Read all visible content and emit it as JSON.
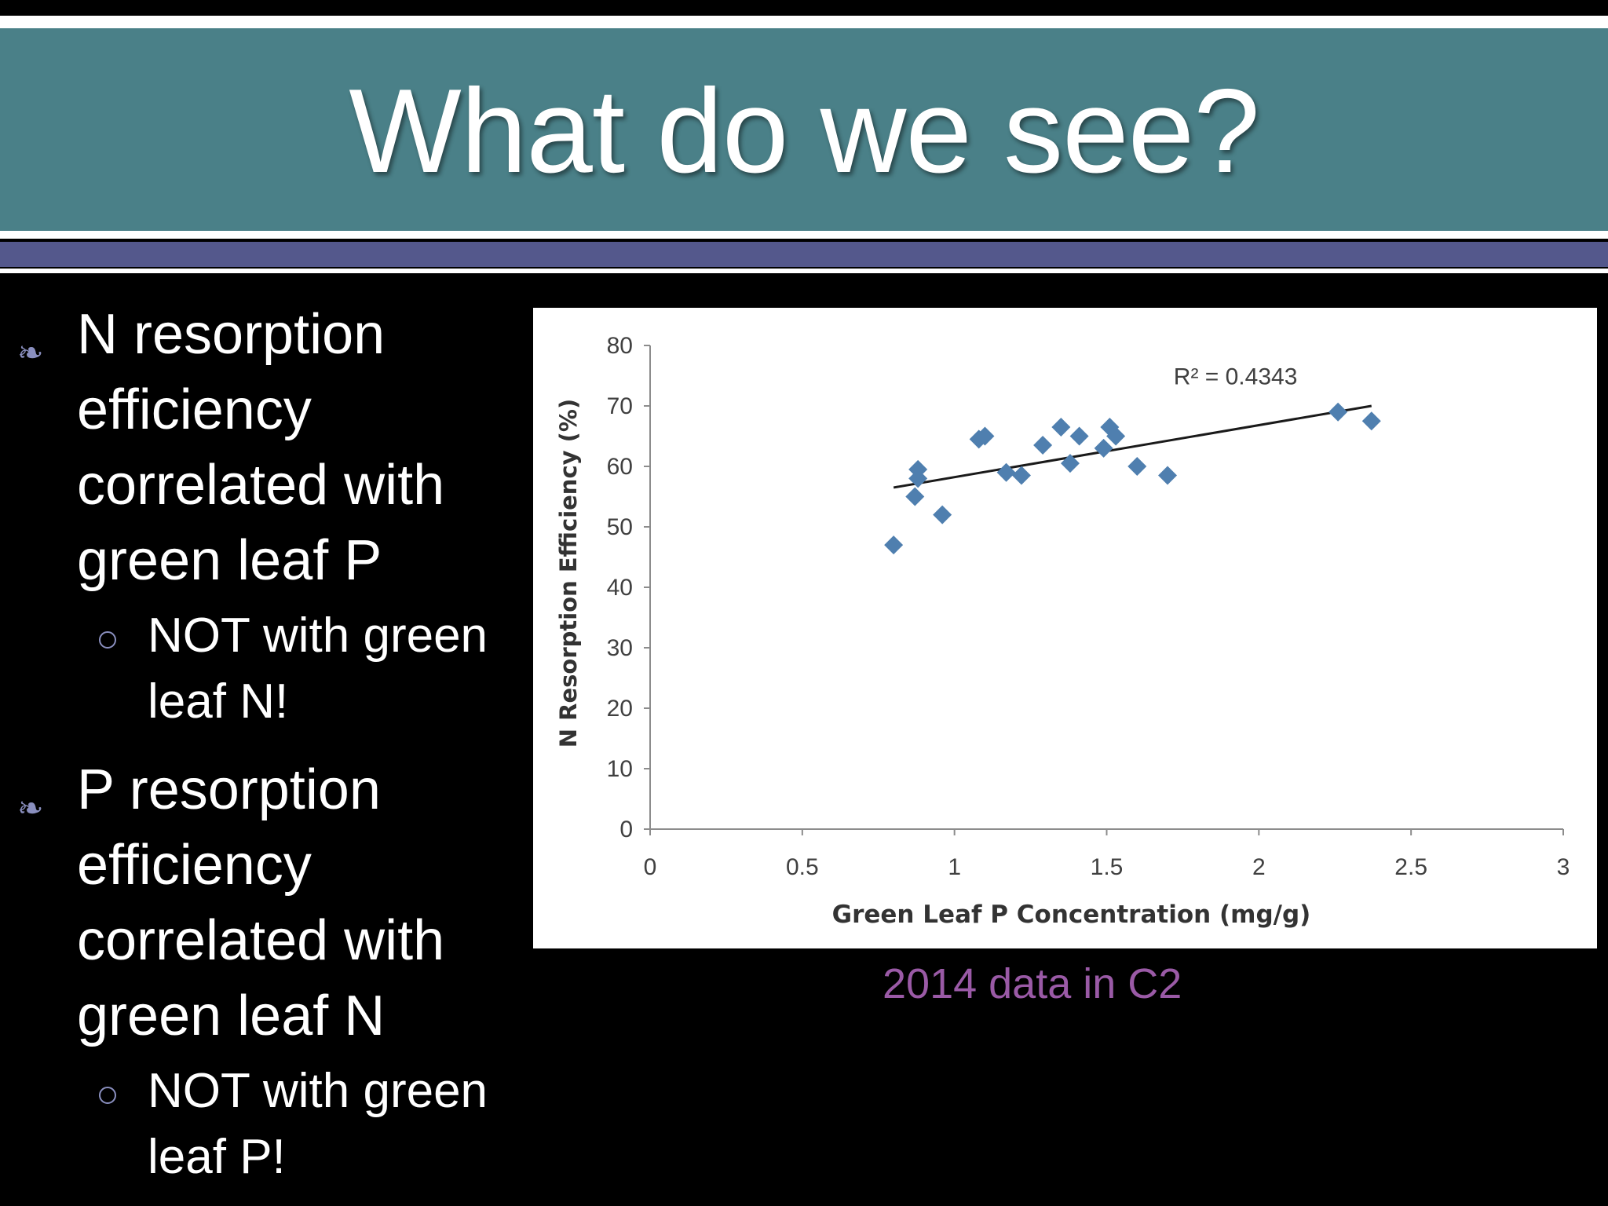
{
  "slide": {
    "title": "What do we see?",
    "bullets": [
      {
        "lines": [
          "N resorption",
          "efficiency",
          "correlated with",
          "green leaf P"
        ],
        "sub": [
          "NOT with green",
          "leaf N!"
        ]
      },
      {
        "lines": [
          "P resorption",
          "efficiency",
          "correlated with",
          "green leaf N"
        ],
        "sub": [
          "NOT with green",
          "leaf P!"
        ]
      }
    ],
    "caption": "2014 data in C2",
    "colors": {
      "title_bar": "#4a8088",
      "accent_band": "#54588c",
      "bullet_glyph": "#8a8fbf",
      "caption": "#9a5aa6",
      "marker": "#4f7faf"
    }
  },
  "chart_data": {
    "type": "scatter",
    "xlabel": "Green Leaf P Concentration (mg/g)",
    "ylabel": "N Resorption Efficiency (%)",
    "xlim": [
      0,
      3
    ],
    "ylim": [
      0,
      80
    ],
    "x_ticks": [
      "0",
      "0.5",
      "1",
      "1.5",
      "2",
      "2.5",
      "3"
    ],
    "y_ticks": [
      "0",
      "10",
      "20",
      "30",
      "40",
      "50",
      "60",
      "70",
      "80"
    ],
    "grid": false,
    "legend": "none",
    "points": [
      {
        "x": 0.8,
        "y": 47
      },
      {
        "x": 0.87,
        "y": 55
      },
      {
        "x": 0.88,
        "y": 58
      },
      {
        "x": 0.88,
        "y": 59.5
      },
      {
        "x": 0.96,
        "y": 52
      },
      {
        "x": 1.08,
        "y": 64.5
      },
      {
        "x": 1.1,
        "y": 65
      },
      {
        "x": 1.17,
        "y": 59
      },
      {
        "x": 1.22,
        "y": 58.5
      },
      {
        "x": 1.29,
        "y": 63.5
      },
      {
        "x": 1.35,
        "y": 66.5
      },
      {
        "x": 1.38,
        "y": 60.5
      },
      {
        "x": 1.41,
        "y": 65
      },
      {
        "x": 1.49,
        "y": 63
      },
      {
        "x": 1.51,
        "y": 66.5
      },
      {
        "x": 1.53,
        "y": 65
      },
      {
        "x": 1.6,
        "y": 60
      },
      {
        "x": 1.7,
        "y": 58.5
      },
      {
        "x": 2.26,
        "y": 69
      },
      {
        "x": 2.37,
        "y": 67.5
      }
    ],
    "trendline": {
      "x": [
        0.8,
        2.37
      ],
      "y": [
        56.5,
        70
      ],
      "label": "R² = 0.4343"
    }
  }
}
